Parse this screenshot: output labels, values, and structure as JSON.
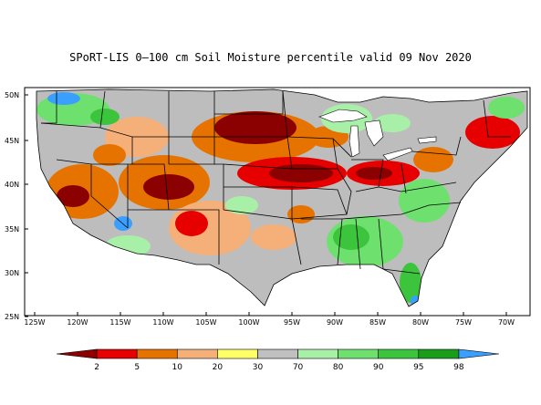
{
  "title": "SPoRT-LIS 0–100 cm Soil Moisture percentile valid 09 Nov 2020",
  "map": {
    "lat_labels": [
      "50N",
      "45N",
      "40N",
      "35N",
      "30N",
      "25N"
    ],
    "lon_labels": [
      "125W",
      "120W",
      "115W",
      "110W",
      "105W",
      "100W",
      "95W",
      "90W",
      "85W",
      "80W",
      "75W",
      "70W"
    ]
  },
  "colorbar": {
    "labels": [
      "2",
      "5",
      "10",
      "20",
      "30",
      "70",
      "80",
      "90",
      "95",
      "98"
    ],
    "colors": [
      "#8b0000",
      "#e60000",
      "#e67300",
      "#f5b07a",
      "#ffff66",
      "#c0c0c0",
      "#a8f0a8",
      "#6ee06e",
      "#3cc43c",
      "#1a9e1a",
      "#3aa0ff"
    ]
  },
  "colors": {
    "normal": "#bdbdbd",
    "dry_extreme": "#8b0000",
    "dry_severe": "#e60000",
    "dry_moderate": "#e67300",
    "dry_light": "#f5b07a",
    "wet_light": "#a8f0a8",
    "wet_moderate": "#6ee06e",
    "wet_severe": "#3cc43c",
    "wet_extreme": "#3aa0ff",
    "water": "#ffffff"
  }
}
